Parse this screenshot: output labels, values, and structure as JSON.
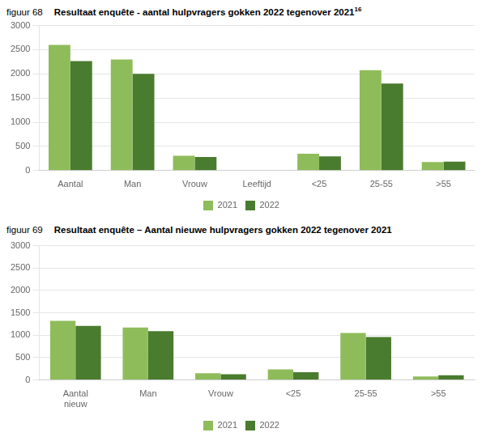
{
  "chart_data": [
    {
      "type": "bar",
      "title": "Resultaat enquête - aantal hulpvragers gokken 2022 tegenover 2021",
      "annotations": [
        "figuur 68",
        "16"
      ],
      "categories": [
        "Aantal",
        "Man",
        "Vrouw",
        "Leeftijd",
        "<25",
        "25-55",
        ">55"
      ],
      "series": [
        {
          "name": "2021",
          "color": "#8fbc5a",
          "values": [
            2600,
            2300,
            305,
            0,
            350,
            2075,
            175
          ]
        },
        {
          "name": "2022",
          "color": "#4a7c2f",
          "values": [
            2265,
            2000,
            280,
            0,
            295,
            1800,
            185
          ]
        }
      ],
      "ylim": [
        0,
        3000
      ],
      "yticks": [
        0,
        500,
        1000,
        1500,
        2000,
        2500,
        3000
      ],
      "grid": true,
      "legend": "bottom"
    },
    {
      "type": "bar",
      "title": "Resultaat enquête – Aantal nieuwe hulpvragers gokken 2022 tegenover 2021",
      "annotations": [
        "figuur 69"
      ],
      "categories": [
        "Aantal\nnieuw",
        "Man",
        "Vrouw",
        "<25",
        "25-55",
        ">55"
      ],
      "series": [
        {
          "name": "2021",
          "color": "#8fbc5a",
          "values": [
            1320,
            1170,
            150,
            235,
            1050,
            80
          ]
        },
        {
          "name": "2022",
          "color": "#4a7c2f",
          "values": [
            1210,
            1090,
            130,
            175,
            960,
            105
          ]
        }
      ],
      "ylim": [
        0,
        3000
      ],
      "yticks": [
        0,
        500,
        1000,
        1500,
        2000,
        2500,
        3000
      ],
      "grid": true,
      "legend": "bottom"
    }
  ]
}
